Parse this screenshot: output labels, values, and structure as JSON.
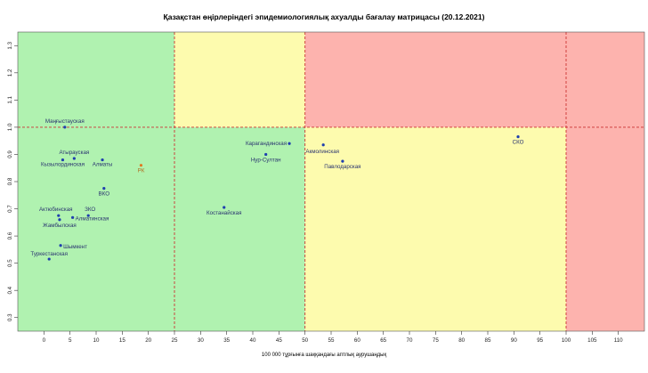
{
  "chart_data": {
    "type": "scatter",
    "title": "Қазақстан өңірлеріндегі эпидемиологиялық ахуалды бағалау матрицасы  (20.12.2021)",
    "xlabel": "100 000 тұрғынға шаққандағы аптлық аурушаңдық",
    "ylabel": "",
    "xlim": [
      -5,
      115
    ],
    "ylim": [
      0.25,
      1.35
    ],
    "xticks": [
      0,
      5,
      10,
      15,
      20,
      25,
      30,
      35,
      40,
      45,
      50,
      55,
      60,
      65,
      70,
      75,
      80,
      85,
      90,
      95,
      100,
      105,
      110
    ],
    "yticks": [
      0.3,
      0.4,
      0.5,
      0.6,
      0.7,
      0.8,
      0.9,
      1.0,
      1.1,
      1.2,
      1.3
    ],
    "grid": false,
    "legend": "none",
    "zones": [
      {
        "x": [
          -5,
          25
        ],
        "y": [
          1.0,
          1.35
        ],
        "color": "#b0f2b0"
      },
      {
        "x": [
          25,
          50
        ],
        "y": [
          1.0,
          1.35
        ],
        "color": "#fdfbae"
      },
      {
        "x": [
          50,
          115
        ],
        "y": [
          1.0,
          1.35
        ],
        "color": "#fdb3ae"
      },
      {
        "x": [
          -5,
          50
        ],
        "y": [
          0.25,
          1.0
        ],
        "color": "#b0f2b0"
      },
      {
        "x": [
          50,
          100
        ],
        "y": [
          0.25,
          1.0
        ],
        "color": "#fdfbae"
      },
      {
        "x": [
          100,
          115
        ],
        "y": [
          0.25,
          1.0
        ],
        "color": "#fdb3ae"
      }
    ],
    "threshold_lines": {
      "x": [
        25,
        50,
        100
      ],
      "y": [
        1.0
      ],
      "color": "#cc3333"
    },
    "points": [
      {
        "label": "Маңғыстауская",
        "x": 4.0,
        "y": 1.0
      },
      {
        "label": "Атырауская",
        "x": 5.8,
        "y": 0.885
      },
      {
        "label": "Кызылординская",
        "x": 3.6,
        "y": 0.88
      },
      {
        "label": "Алматы",
        "x": 11.2,
        "y": 0.88
      },
      {
        "label": "РК",
        "x": 18.6,
        "y": 0.86
      },
      {
        "label": "ВКО",
        "x": 11.5,
        "y": 0.775
      },
      {
        "label": "Актюбинская",
        "x": 2.8,
        "y": 0.675
      },
      {
        "label": "ЗКО",
        "x": 8.5,
        "y": 0.675
      },
      {
        "label": "Алматинская",
        "x": 5.5,
        "y": 0.668
      },
      {
        "label": "Жамбылская",
        "x": 3.0,
        "y": 0.66
      },
      {
        "label": "Шымкент",
        "x": 3.2,
        "y": 0.565
      },
      {
        "label": "Туркестанская",
        "x": 1.0,
        "y": 0.515
      },
      {
        "label": "Костанайская",
        "x": 34.5,
        "y": 0.705
      },
      {
        "label": "Карагандинская",
        "x": 47.0,
        "y": 0.94
      },
      {
        "label": "Нур-Султан",
        "x": 42.5,
        "y": 0.9
      },
      {
        "label": "Акмолинская",
        "x": 53.5,
        "y": 0.935
      },
      {
        "label": "Павлодарская",
        "x": 57.2,
        "y": 0.875
      },
      {
        "label": "СКО",
        "x": 90.8,
        "y": 0.965
      }
    ],
    "point_color": "#1f3fae",
    "point_color_highlight": "#e07820"
  }
}
